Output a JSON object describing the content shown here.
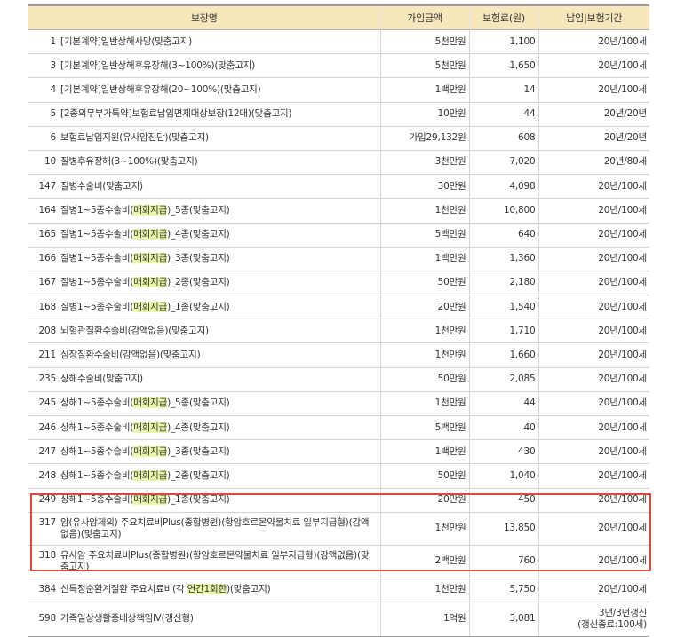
{
  "table": {
    "headers": [
      "보장명",
      "가입금액",
      "보험료(원)",
      "납입|보험기간"
    ],
    "rows": [
      {
        "no": "1",
        "pre": "[기본계약]일반상해사망(맞춤고지)",
        "hl": "",
        "post": "",
        "amount": "5천만원",
        "premium": "1,100",
        "period": "20년/100세"
      },
      {
        "no": "3",
        "pre": "[기본계약]일반상해후유장해(3~100%)(맞춤고지)",
        "hl": "",
        "post": "",
        "amount": "5천만원",
        "premium": "1,650",
        "period": "20년/100세"
      },
      {
        "no": "4",
        "pre": "[기본계약]일반상해후유장해(20~100%)(맞춤고지)",
        "hl": "",
        "post": "",
        "amount": "1백만원",
        "premium": "14",
        "period": "20년/100세"
      },
      {
        "no": "5",
        "pre": "[2종의무부가특약]보험료납입면제대상보장(12대)(맞춤고지)",
        "hl": "",
        "post": "",
        "amount": "10만원",
        "premium": "44",
        "period": "20년/20년"
      },
      {
        "no": "6",
        "pre": "보험료납입지원(유사암진단)(맞춤고지)",
        "hl": "",
        "post": "",
        "amount": "가입29,132원",
        "premium": "608",
        "period": "20년/20년"
      },
      {
        "no": "10",
        "pre": "질병후유장해(3~100%)(맞춤고지)",
        "hl": "",
        "post": "",
        "amount": "3천만원",
        "premium": "7,020",
        "period": "20년/80세"
      },
      {
        "no": "147",
        "pre": "질병수술비(맞춤고지)",
        "hl": "",
        "post": "",
        "amount": "30만원",
        "premium": "4,098",
        "period": "20년/100세"
      },
      {
        "no": "164",
        "pre": "질병1~5종수술비(",
        "hl": "매회지급",
        "post": ")_5종(맞춤고지)",
        "amount": "1천만원",
        "premium": "10,800",
        "period": "20년/100세"
      },
      {
        "no": "165",
        "pre": "질병1~5종수술비(",
        "hl": "매회지급",
        "post": ")_4종(맞춤고지)",
        "amount": "5백만원",
        "premium": "640",
        "period": "20년/100세"
      },
      {
        "no": "166",
        "pre": "질병1~5종수술비(",
        "hl": "매회지급",
        "post": ")_3종(맞춤고지)",
        "amount": "1백만원",
        "premium": "1,360",
        "period": "20년/100세"
      },
      {
        "no": "167",
        "pre": "질병1~5종수술비(",
        "hl": "매회지급",
        "post": ")_2종(맞춤고지)",
        "amount": "50만원",
        "premium": "2,180",
        "period": "20년/100세"
      },
      {
        "no": "168",
        "pre": "질병1~5종수술비(",
        "hl": "매회지급",
        "post": ")_1종(맞춤고지)",
        "amount": "20만원",
        "premium": "1,540",
        "period": "20년/100세"
      },
      {
        "no": "208",
        "pre": "뇌혈관질환수술비(감액없음)(맞춤고지)",
        "hl": "",
        "post": "",
        "amount": "1천만원",
        "premium": "1,710",
        "period": "20년/100세"
      },
      {
        "no": "211",
        "pre": "심장질환수술비(감액없음)(맞춤고지)",
        "hl": "",
        "post": "",
        "amount": "1천만원",
        "premium": "1,660",
        "period": "20년/100세"
      },
      {
        "no": "235",
        "pre": "상해수술비(맞춤고지)",
        "hl": "",
        "post": "",
        "amount": "50만원",
        "premium": "2,085",
        "period": "20년/100세"
      },
      {
        "no": "245",
        "pre": "상해1~5종수술비(",
        "hl": "매회지급",
        "post": ")_5종(맞춤고지)",
        "amount": "1천만원",
        "premium": "44",
        "period": "20년/100세"
      },
      {
        "no": "246",
        "pre": "상해1~5종수술비(",
        "hl": "매회지급",
        "post": ")_4종(맞춤고지)",
        "amount": "5백만원",
        "premium": "40",
        "period": "20년/100세"
      },
      {
        "no": "247",
        "pre": "상해1~5종수술비(",
        "hl": "매회지급",
        "post": ")_3종(맞춤고지)",
        "amount": "1백만원",
        "premium": "430",
        "period": "20년/100세"
      },
      {
        "no": "248",
        "pre": "상해1~5종수술비(",
        "hl": "매회지급",
        "post": ")_2종(맞춤고지)",
        "amount": "50만원",
        "premium": "1,040",
        "period": "20년/100세"
      },
      {
        "no": "249",
        "pre": "상해1~5종수술비(",
        "hl": "매회지급",
        "post": ")_1종(맞춤고지)",
        "amount": "20만원",
        "premium": "450",
        "period": "20년/100세"
      },
      {
        "no": "317",
        "pre": "암(유사암제외)  주요치료비Plus(종합병원)(항암호르몬약물치료  일부지급형)(감액없음)(맞춤고지)",
        "hl": "",
        "post": "",
        "amount": "1천만원",
        "premium": "13,850",
        "period": "20년/100세",
        "tall": true
      },
      {
        "no": "318",
        "pre": "유사암  주요치료비Plus(종합병원)(항암호르몬약물치료  일부지급형)(감액없음)(맞춤고지)",
        "hl": "",
        "post": "",
        "amount": "2백만원",
        "premium": "760",
        "period": "20년/100세",
        "tall": true
      },
      {
        "no": "384",
        "pre": "신특정순환계질환 주요치료비(각 ",
        "hl": "연간1회한",
        "post": ")(맞춤고지)",
        "amount": "1천만원",
        "premium": "5,750",
        "period": "20년/100세"
      },
      {
        "no": "598",
        "pre": "가족일상생활중배상책임Ⅳ(갱신형)",
        "hl": "",
        "post": "",
        "amount": "1억원",
        "premium": "3,081",
        "period": "3년/3년갱신\n(갱신종료:100세)",
        "last": true
      }
    ]
  }
}
